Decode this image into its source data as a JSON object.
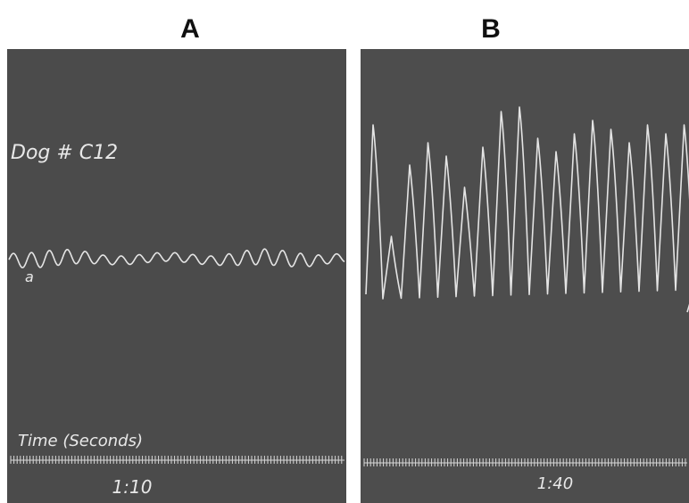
{
  "panels": [
    {
      "label": "A",
      "dog": "Dog # C12",
      "trace_label": "a",
      "time_label": "Time (Seconds)",
      "ratio": "1:10"
    },
    {
      "label": "B",
      "ratio": "1:40"
    }
  ]
}
